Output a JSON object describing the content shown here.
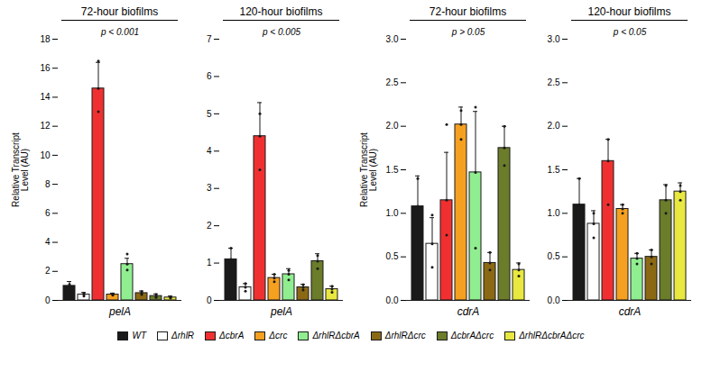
{
  "chart_data": [
    {
      "type": "bar",
      "title": "72-hour biofilms",
      "annotation": "p < 0.001",
      "xlabel": "pelA",
      "ylabel": "Relative Transcript\nLevel (AU)",
      "categories": [
        "WT",
        "ΔrhlR",
        "ΔcbrA",
        "Δcrc",
        "ΔrhlRΔcbrA",
        "ΔrhlRΔcrc",
        "ΔcbrAΔcrc",
        "ΔrhlRΔcbrAΔcrc"
      ],
      "colors": [
        "#1a1a1a",
        "#ffffff",
        "#f03030",
        "#f5a020",
        "#90ee90",
        "#8b6914",
        "#6b7c2a",
        "#e8e840"
      ],
      "values": [
        1.0,
        0.4,
        14.6,
        0.4,
        2.5,
        0.5,
        0.3,
        0.2
      ],
      "errors": [
        0.3,
        0.15,
        1.8,
        0.1,
        0.4,
        0.15,
        0.15,
        0.1
      ],
      "scatter": [
        [
          0.85,
          1.0,
          1.1
        ],
        [
          0.3,
          0.4,
          0.5
        ],
        [
          13.0,
          14.6,
          16.5
        ],
        [
          0.35,
          0.4,
          0.45
        ],
        [
          2.1,
          2.5,
          3.2
        ],
        [
          0.4,
          0.5,
          0.6
        ],
        [
          0.2,
          0.3,
          0.4
        ],
        [
          0.15,
          0.2,
          0.25
        ]
      ],
      "ylim": [
        0,
        18
      ],
      "yticks": [
        0,
        2,
        4,
        6,
        8,
        10,
        12,
        14,
        16,
        18
      ],
      "tick_labels": "y",
      "legend": "bottom"
    },
    {
      "type": "bar",
      "title": "120-hour biofilms",
      "annotation": "p < 0.005",
      "xlabel": "pelA",
      "categories": [
        "WT",
        "ΔrhlR",
        "ΔcbrA",
        "Δcrc",
        "ΔrhlRΔcbrA",
        "ΔrhlRΔcrc",
        "ΔcbrAΔcrc",
        "ΔrhlRΔcbrAΔcrc"
      ],
      "colors": [
        "#1a1a1a",
        "#ffffff",
        "#f03030",
        "#f5a020",
        "#90ee90",
        "#8b6914",
        "#6b7c2a",
        "#e8e840"
      ],
      "values": [
        1.1,
        0.35,
        4.4,
        0.6,
        0.7,
        0.35,
        1.05,
        0.3
      ],
      "errors": [
        0.3,
        0.1,
        0.9,
        0.1,
        0.15,
        0.08,
        0.2,
        0.08
      ],
      "scatter": [
        [
          0.85,
          1.1,
          1.4
        ],
        [
          0.25,
          0.35,
          0.45
        ],
        [
          3.5,
          4.4,
          5.0
        ],
        [
          0.5,
          0.6,
          0.7
        ],
        [
          0.55,
          0.7,
          0.8
        ],
        [
          0.28,
          0.35,
          0.42
        ],
        [
          0.85,
          1.05,
          1.2
        ],
        [
          0.22,
          0.3,
          0.38
        ]
      ],
      "ylim": [
        0,
        7
      ],
      "yticks": [
        0,
        1,
        2,
        3,
        4,
        5,
        6,
        7
      ],
      "tick_labels": "y",
      "legend": "bottom"
    },
    {
      "type": "bar",
      "title": "72-hour biofilms",
      "annotation": "p > 0.05",
      "xlabel": "cdrA",
      "ylabel": "Relative Transcript\nLevel (AU)",
      "categories": [
        "WT",
        "ΔrhlR",
        "ΔcbrA",
        "Δcrc",
        "ΔrhlRΔcbrA",
        "ΔrhlRΔcrc",
        "ΔcbrAΔcrc",
        "ΔrhlRΔcbrAΔcrc"
      ],
      "colors": [
        "#1a1a1a",
        "#ffffff",
        "#f03030",
        "#f5a020",
        "#90ee90",
        "#8b6914",
        "#6b7c2a",
        "#e8e840"
      ],
      "values": [
        1.08,
        0.65,
        1.15,
        2.02,
        1.47,
        0.43,
        1.75,
        0.35
      ],
      "errors": [
        0.35,
        0.3,
        0.55,
        0.2,
        0.7,
        0.12,
        0.25,
        0.08
      ],
      "scatter": [
        [
          0.75,
          1.08,
          1.4
        ],
        [
          0.38,
          0.65,
          0.98
        ],
        [
          0.75,
          1.15,
          2.02
        ],
        [
          1.85,
          2.02,
          2.18
        ],
        [
          0.6,
          1.47,
          2.22
        ],
        [
          0.35,
          0.43,
          0.55
        ],
        [
          1.55,
          1.75,
          2.0
        ],
        [
          0.28,
          0.35,
          0.42
        ]
      ],
      "ylim": [
        0,
        3.0
      ],
      "yticks": [
        {
          "value": 0,
          "label": "0.0"
        },
        {
          "value": 0.5,
          "label": "0.5"
        },
        {
          "value": 1.0,
          "label": "1.0"
        },
        {
          "value": 1.5,
          "label": "1.5"
        },
        {
          "value": 2.0,
          "label": "2.0"
        },
        {
          "value": 2.5,
          "label": "2.5"
        },
        {
          "value": 3.0,
          "label": "3.0"
        }
      ],
      "tick_labels": "y",
      "legend": "bottom"
    },
    {
      "type": "bar",
      "title": "120-hour biofilms",
      "annotation": "p < 0.05",
      "xlabel": "cdrA",
      "categories": [
        "WT",
        "ΔrhlR",
        "ΔcbrA",
        "Δcrc",
        "ΔrhlRΔcbrA",
        "ΔrhlRΔcrc",
        "ΔcbrAΔcrc",
        "ΔrhlRΔcbrAΔcrc"
      ],
      "colors": [
        "#1a1a1a",
        "#ffffff",
        "#f03030",
        "#f5a020",
        "#90ee90",
        "#8b6914",
        "#6b7c2a",
        "#e8e840"
      ],
      "values": [
        1.1,
        0.88,
        1.6,
        1.05,
        0.48,
        0.5,
        1.15,
        1.25
      ],
      "errors": [
        0.3,
        0.15,
        0.25,
        0.05,
        0.06,
        0.08,
        0.18,
        0.1
      ],
      "scatter": [
        [
          0.75,
          1.1,
          1.4
        ],
        [
          0.72,
          0.88,
          1.0
        ],
        [
          1.1,
          1.6,
          1.85
        ],
        [
          1.0,
          1.05,
          1.1
        ],
        [
          0.42,
          0.48,
          0.54
        ],
        [
          0.42,
          0.5,
          0.58
        ],
        [
          1.0,
          1.15,
          1.32
        ],
        [
          1.15,
          1.25,
          1.32
        ]
      ],
      "ylim": [
        0,
        3.0
      ],
      "yticks": [
        {
          "value": 0,
          "label": "0.0"
        },
        {
          "value": 0.5,
          "label": "0.5"
        },
        {
          "value": 1.0,
          "label": "1.0"
        },
        {
          "value": 1.5,
          "label": "1.5"
        },
        {
          "value": 2.0,
          "label": "2.0"
        },
        {
          "value": 2.5,
          "label": "2.5"
        },
        {
          "value": 3.0,
          "label": "3.0"
        }
      ],
      "tick_labels": "y",
      "legend": "bottom"
    }
  ]
}
